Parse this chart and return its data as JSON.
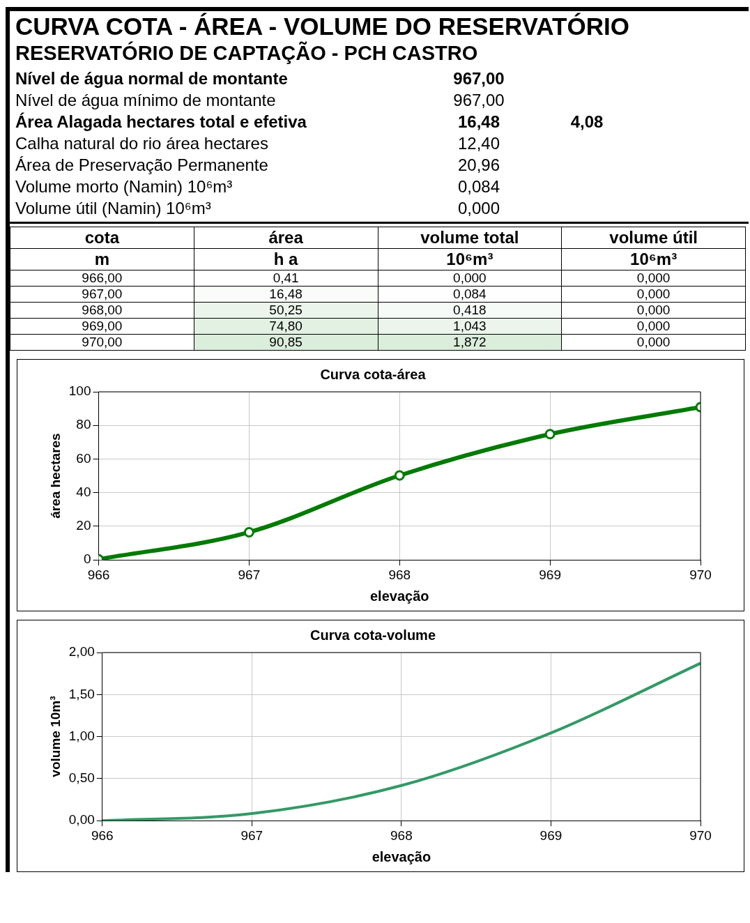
{
  "chart_data": [
    {
      "type": "other",
      "title": "CURVA COTA - ÁREA - VOLUME DO RESERVATÓRIO",
      "subtitle": "RESERVATÓRIO DE CAPTAÇÃO  - PCH CASTRO",
      "annotations": [
        "Nível de água normal de montante",
        "967,00",
        "Nível de água mínimo de montante",
        "967,00",
        "Área Alagada hectares total e efetiva",
        "16,48",
        "4,08",
        "Calha natural do rio área hectares",
        "12,40",
        "Área de Preservação Permanente",
        "20,96",
        "Volume morto  (Namin) 10⁶m³",
        "0,084",
        "Volume útil  (Namin) 10⁶m³",
        "0,000"
      ]
    },
    {
      "type": "heatmap",
      "ylabel": "cota",
      "categories": [
        "área",
        "volume total",
        "volume útil"
      ],
      "annotations": [
        "m",
        "h a",
        "10⁶m³",
        "10⁶m³"
      ],
      "y_categories": [
        "966,00",
        "967,00",
        "968,00",
        "969,00",
        "970,00"
      ],
      "cells": [
        [
          0.41,
          0,
          0
        ],
        [
          16.48,
          0.084,
          0
        ],
        [
          50.25,
          0.418,
          0
        ],
        [
          74.8,
          1.043,
          0
        ],
        [
          90.85,
          1.872,
          0
        ]
      ],
      "cell_labels": [
        [
          "0,41",
          "0,000",
          "0,000"
        ],
        [
          "16,48",
          "0,084",
          "0,000"
        ],
        [
          "50,25",
          "0,418",
          "0,000"
        ],
        [
          "74,80",
          "1,043",
          "0,000"
        ],
        [
          "90,85",
          "1,872",
          "0,000"
        ]
      ]
    },
    {
      "type": "line",
      "title": "Curva cota-área",
      "xlabel": "elevação",
      "ylabel": "área hectares",
      "x": [
        966,
        967,
        968,
        969,
        970
      ],
      "values": [
        0.41,
        16.48,
        50.25,
        74.8,
        90.85
      ],
      "color": "#007a00",
      "marker": "circle",
      "xlim": [
        966,
        970
      ],
      "xticks": [
        966,
        967,
        968,
        969,
        970
      ],
      "ylim": [
        0,
        100
      ],
      "yticks": [
        0,
        20,
        40,
        60,
        80,
        100
      ],
      "grid": true
    },
    {
      "type": "line",
      "title": "Curva cota-volume",
      "xlabel": "elevação",
      "ylabel": "volume 10m³",
      "x": [
        966,
        967,
        968,
        969,
        970
      ],
      "values": [
        0,
        0.084,
        0.418,
        1.043,
        1.872
      ],
      "color": "#339966",
      "xlim": [
        966,
        970
      ],
      "xticks": [
        966,
        967,
        968,
        969,
        970
      ],
      "ylim": [
        0,
        2
      ],
      "yticks": [
        {
          "value": 0,
          "label": "0,00"
        },
        {
          "value": 0.5,
          "label": "0,50"
        },
        {
          "value": 1,
          "label": "1,00"
        },
        {
          "value": 1.5,
          "label": "1,50"
        },
        {
          "value": 2,
          "label": "2,00"
        }
      ],
      "grid": true
    }
  ]
}
